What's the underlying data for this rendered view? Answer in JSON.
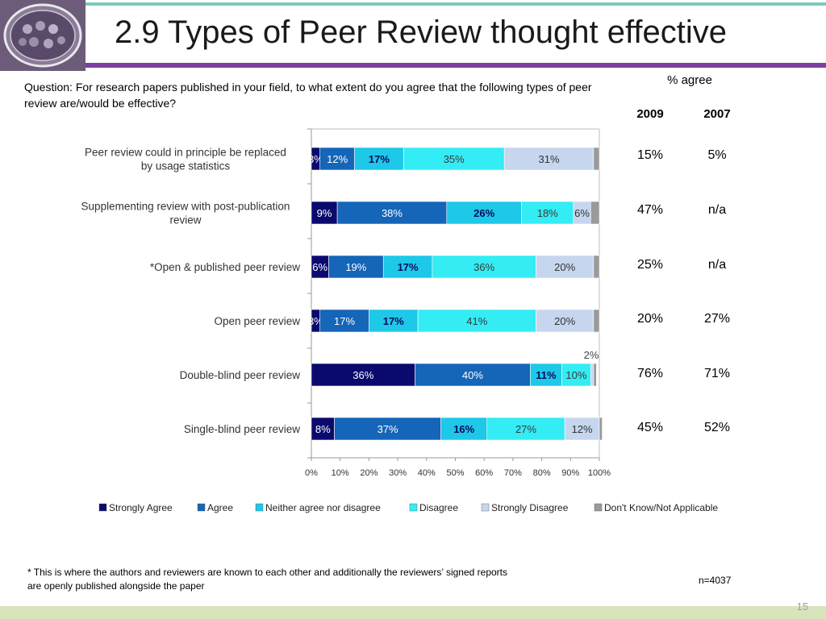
{
  "slide": {
    "title": "2.9 Types of Peer Review thought effective",
    "question": "Question: For research papers published in your field, to what extent do you agree that the following types of peer review are/would be effective?",
    "agree_header": "% agree",
    "years": [
      "2009",
      "2007"
    ],
    "agree_rows": [
      {
        "y2009": "15%",
        "y2007": "5%"
      },
      {
        "y2009": "47%",
        "y2007": "n/a"
      },
      {
        "y2009": "25%",
        "y2007": "n/a"
      },
      {
        "y2009": "20%",
        "y2007": "27%"
      },
      {
        "y2009": "76%",
        "y2007": "71%"
      },
      {
        "y2009": "45%",
        "y2007": "52%"
      }
    ],
    "footnote": "* This is where the authors and reviewers are known to each other and additionally the reviewers’ signed reports are openly published alongside the paper",
    "n_value": "n=4037",
    "page_number": "15"
  },
  "colors": {
    "strongly_agree": "#0a0a6e",
    "agree": "#1565b8",
    "neither": "#1ec8e8",
    "disagree": "#33ecf4",
    "strongly_disagree": "#c6d6ee",
    "dont_know": "#9a9a9a",
    "accent_purple": "#7a3fa0",
    "accent_teal": "#7ec8c0"
  },
  "chart_data": {
    "type": "bar",
    "orientation": "horizontal",
    "stacked": true,
    "percent_stacked": true,
    "categories": [
      "Peer review could in principle be replaced by usage statistics",
      "Supplementing review with post-publication review",
      "Open & published peer review",
      "Open peer review",
      "Double-blind peer review",
      "Single-blind peer review"
    ],
    "category_marks": [
      "",
      "",
      "*",
      "",
      "",
      ""
    ],
    "series": [
      {
        "name": "Strongly Agree",
        "values": [
          3,
          9,
          6,
          3,
          36,
          8
        ],
        "labels": [
          "3%",
          "9%",
          "6%",
          "3%",
          "36%",
          "8%"
        ]
      },
      {
        "name": "Agree",
        "values": [
          12,
          38,
          19,
          17,
          40,
          37
        ],
        "labels": [
          "12%",
          "38%",
          "19%",
          "17%",
          "40%",
          "37%"
        ]
      },
      {
        "name": "Neither agree nor disagree",
        "values": [
          17,
          26,
          17,
          17,
          11,
          16
        ],
        "labels": [
          "17%",
          "26%",
          "17%",
          "17%",
          "11%",
          "16%"
        ]
      },
      {
        "name": "Disagree",
        "values": [
          35,
          18,
          36,
          41,
          10,
          27
        ],
        "labels": [
          "35%",
          "18%",
          "36%",
          "41%",
          "10%",
          "27%"
        ]
      },
      {
        "name": "Strongly Disagree",
        "values": [
          31,
          6,
          20,
          20,
          1,
          12
        ],
        "labels": [
          "31%",
          "6%",
          "20%",
          "20%",
          "",
          "12%"
        ]
      },
      {
        "name": "Don't Know/Not Applicable",
        "values": [
          2,
          3,
          2,
          2,
          1,
          1
        ],
        "labels": [
          "",
          "",
          "",
          "",
          "",
          ""
        ]
      }
    ],
    "outside_labels": [
      {
        "category_index": 4,
        "text": "2%"
      }
    ],
    "xlim": [
      0,
      100
    ],
    "x_ticks": [
      "0%",
      "10%",
      "20%",
      "30%",
      "40%",
      "50%",
      "60%",
      "70%",
      "80%",
      "90%",
      "100%"
    ],
    "legend_position": "bottom",
    "grid": false
  }
}
